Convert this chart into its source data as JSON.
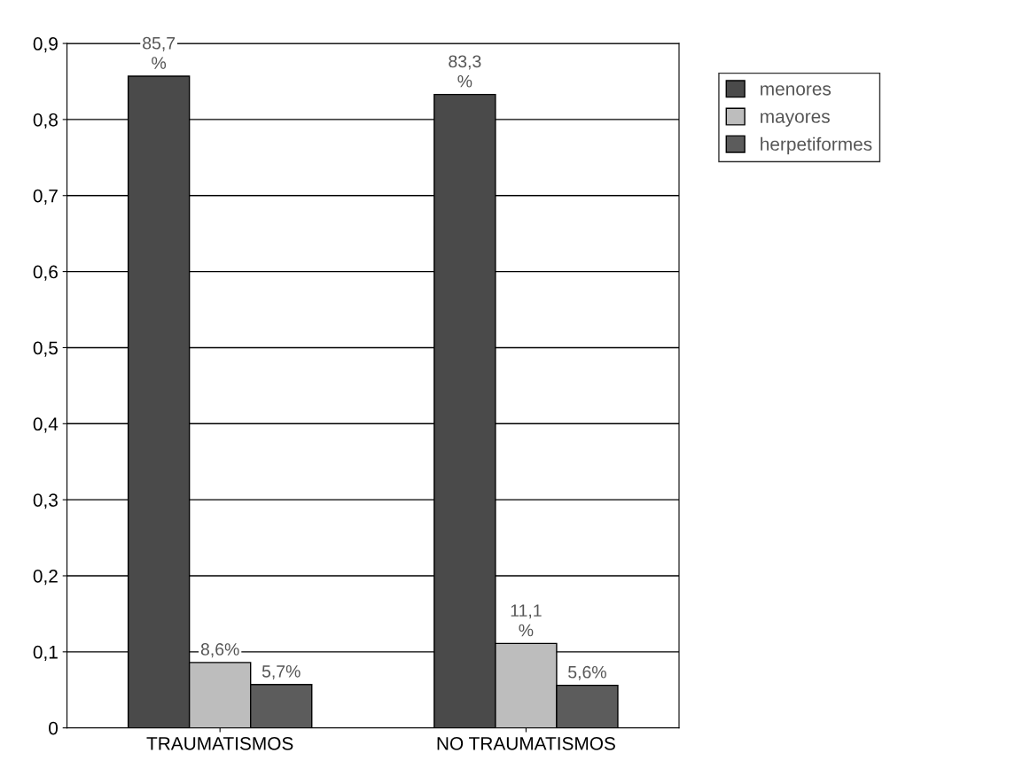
{
  "chart_data": {
    "type": "bar",
    "categories": [
      "TRAUMATISMOS",
      "NO TRAUMATISMOS"
    ],
    "series": [
      {
        "name": "menores",
        "color": "#4a4a4a",
        "values": [
          0.857,
          0.833
        ],
        "value_labels": [
          "85,7\n%",
          "83,3\n%"
        ]
      },
      {
        "name": "mayores",
        "color": "#bdbdbd",
        "values": [
          0.086,
          0.111
        ],
        "value_labels": [
          "8,6%",
          "11,1\n%"
        ]
      },
      {
        "name": "herpetiformes",
        "color": "#5c5c5c",
        "values": [
          0.057,
          0.056
        ],
        "value_labels": [
          "5,7%",
          "5,6%"
        ]
      }
    ],
    "ylim": [
      0,
      0.9
    ],
    "yticks": [
      0,
      {
        "value": 0.1,
        "label": "0,1"
      },
      {
        "value": 0.2,
        "label": "0,2"
      },
      {
        "value": 0.3,
        "label": "0,3"
      },
      {
        "value": 0.4,
        "label": "0,4"
      },
      {
        "value": 0.5,
        "label": "0,5"
      },
      {
        "value": 0.6,
        "label": "0,6"
      },
      {
        "value": 0.7,
        "label": "0,7"
      },
      {
        "value": 0.8,
        "label": "0,8"
      },
      {
        "value": 0.9,
        "label": "0,9"
      }
    ],
    "grid": "y",
    "legend": "right"
  }
}
